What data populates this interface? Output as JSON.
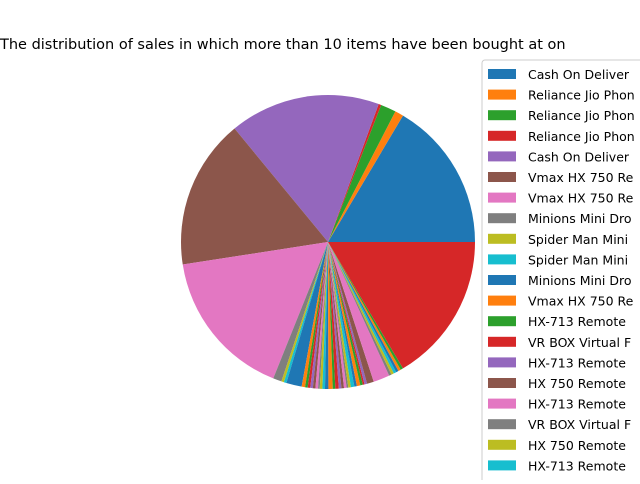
{
  "chart_data": {
    "type": "pie",
    "title": "The distribution of sales in which more than 10 items have been bought at on",
    "legend_position": "right (clipped)",
    "legend_labels": [
      "Cash On Deliver",
      "Reliance Jio Phon",
      "Reliance Jio Phon",
      "Reliance Jio Phon",
      "Cash On Deliver",
      "Vmax HX 750 Re",
      "Vmax HX 750 Re",
      "Minions Mini Dro",
      "Spider Man Mini",
      "Spider Man Mini",
      "Minions Mini Dro",
      "Vmax HX 750 Re",
      "HX-713 Remote",
      "VR BOX Virtual F",
      "HX-713 Remote",
      "HX 750 Remote",
      "HX-713 Remote",
      "VR BOX Virtual F",
      "HX 750 Remote",
      "HX-713 Remote"
    ],
    "palette": [
      "#1f77b4",
      "#ff7f0e",
      "#2ca02c",
      "#d62728",
      "#9467bd",
      "#8c564b",
      "#e377c2",
      "#7f7f7f",
      "#bcbd22",
      "#17becf"
    ],
    "values": [
      17.5,
      1.0,
      1.8,
      0.3,
      17.6,
      17.5,
      17.5,
      1.0,
      0.3,
      0.3,
      1.8,
      0.4,
      0.3,
      0.3,
      0.3,
      0.3,
      0.3,
      0.2,
      0.3,
      0.3,
      0.4,
      0.5,
      0.3,
      0.4,
      0.3,
      0.3,
      0.3,
      0.2,
      0.3,
      0.4,
      0.3,
      0.4,
      0.3,
      0.2,
      0.3,
      0.8,
      1.9,
      0.3,
      0.3,
      0.3,
      0.3,
      0.3,
      0.3,
      17.5
    ],
    "start_angle_deg": 0,
    "direction": "counterclockwise",
    "colors": {
      "background": "#ffffff",
      "legend_border": "#cccccc",
      "text": "#000000"
    }
  }
}
